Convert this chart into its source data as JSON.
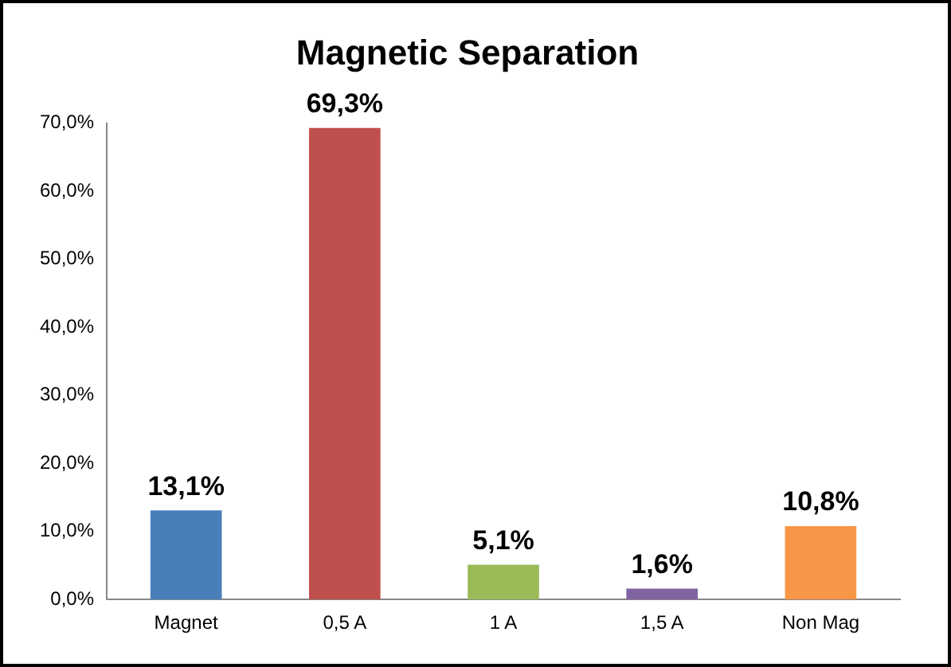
{
  "chart_data": {
    "type": "bar",
    "title": "Magnetic Separation",
    "categories": [
      "Magnet",
      "0,5 A",
      "1 A",
      "1,5 A",
      "Non Mag"
    ],
    "values": [
      13.1,
      69.3,
      5.1,
      1.6,
      10.8
    ],
    "colors": [
      "#4a7ebb",
      "#c0504d",
      "#9bbb59",
      "#8064a2",
      "#f79646"
    ],
    "value_labels": [
      "13,1%",
      "69,3%",
      "5,1%",
      "1,6%",
      "10,8%"
    ],
    "ylim": [
      0,
      70
    ],
    "yticks": [
      {
        "value": 0,
        "label": "0,0%"
      },
      {
        "value": 10,
        "label": "10,0%"
      },
      {
        "value": 20,
        "label": "20,0%"
      },
      {
        "value": 30,
        "label": "30,0%"
      },
      {
        "value": 40,
        "label": "40,0%"
      },
      {
        "value": 50,
        "label": "50,0%"
      },
      {
        "value": 60,
        "label": "60,0%"
      },
      {
        "value": 70,
        "label": "70,0%"
      }
    ],
    "grid": false,
    "legend": false
  }
}
